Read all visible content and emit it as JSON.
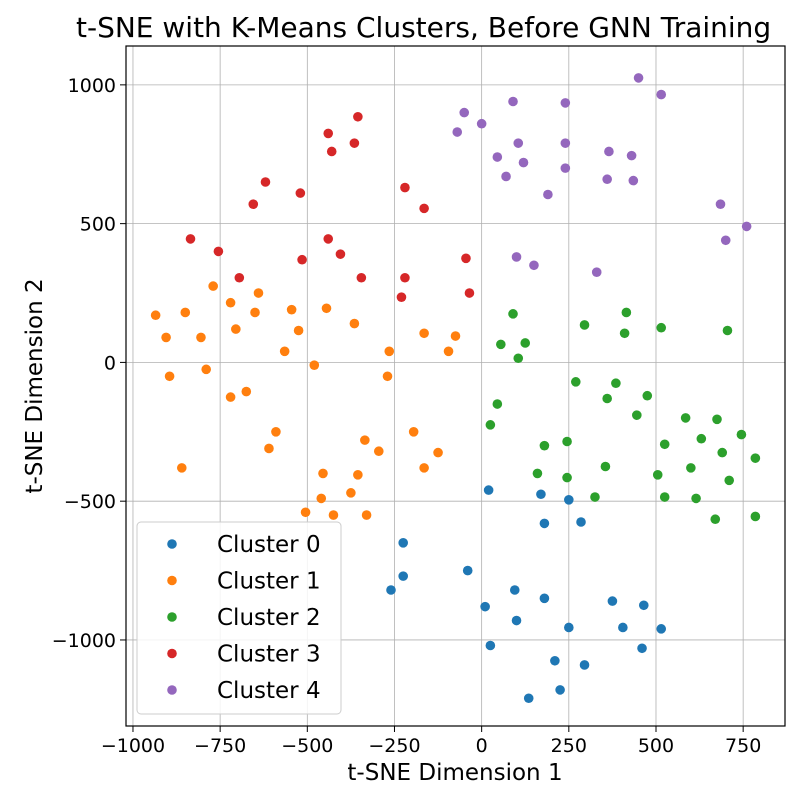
{
  "chart_data": {
    "type": "scatter",
    "title": "t-SNE with K-Means Clusters, Before GNN Training",
    "xlabel": "t-SNE Dimension 1",
    "ylabel": "t-SNE Dimension 2",
    "xlim": [
      -1020,
      870
    ],
    "ylim": [
      -1310,
      1140
    ],
    "xticks": [
      -1000,
      -750,
      -500,
      -250,
      0,
      250,
      500,
      750
    ],
    "xtick_labels": [
      "−1000",
      "−750",
      "−500",
      "−250",
      "0",
      "250",
      "500",
      "750"
    ],
    "yticks": [
      -1000,
      -500,
      0,
      500,
      1000
    ],
    "ytick_labels": [
      "−1000",
      "−500",
      "0",
      "500",
      "1000"
    ],
    "grid": true,
    "legend_position": "lower-left",
    "series": [
      {
        "name": "Cluster 0",
        "color": "#1f77b4",
        "points": [
          [
            20,
            -460
          ],
          [
            170,
            -475
          ],
          [
            180,
            -580
          ],
          [
            250,
            -495
          ],
          [
            285,
            -575
          ],
          [
            -225,
            -650
          ],
          [
            -225,
            -770
          ],
          [
            -260,
            -820
          ],
          [
            -40,
            -750
          ],
          [
            10,
            -880
          ],
          [
            95,
            -820
          ],
          [
            100,
            -930
          ],
          [
            25,
            -1020
          ],
          [
            180,
            -850
          ],
          [
            250,
            -955
          ],
          [
            295,
            -1090
          ],
          [
            210,
            -1075
          ],
          [
            225,
            -1180
          ],
          [
            135,
            -1210
          ],
          [
            375,
            -860
          ],
          [
            405,
            -955
          ],
          [
            465,
            -875
          ],
          [
            515,
            -960
          ],
          [
            460,
            -1030
          ]
        ]
      },
      {
        "name": "Cluster 1",
        "color": "#ff7f0e",
        "points": [
          [
            -935,
            170
          ],
          [
            -850,
            180
          ],
          [
            -770,
            275
          ],
          [
            -720,
            215
          ],
          [
            -640,
            250
          ],
          [
            -545,
            190
          ],
          [
            -905,
            90
          ],
          [
            -895,
            -50
          ],
          [
            -805,
            90
          ],
          [
            -790,
            -25
          ],
          [
            -705,
            120
          ],
          [
            -650,
            180
          ],
          [
            -565,
            40
          ],
          [
            -525,
            115
          ],
          [
            -445,
            195
          ],
          [
            -480,
            -10
          ],
          [
            -365,
            140
          ],
          [
            -265,
            40
          ],
          [
            -165,
            105
          ],
          [
            -75,
            95
          ],
          [
            -95,
            40
          ],
          [
            -270,
            -50
          ],
          [
            -720,
            -125
          ],
          [
            -675,
            -105
          ],
          [
            -610,
            -310
          ],
          [
            -590,
            -250
          ],
          [
            -860,
            -380
          ],
          [
            -455,
            -400
          ],
          [
            -505,
            -540
          ],
          [
            -460,
            -490
          ],
          [
            -425,
            -550
          ],
          [
            -375,
            -470
          ],
          [
            -355,
            -405
          ],
          [
            -335,
            -280
          ],
          [
            -330,
            -550
          ],
          [
            -295,
            -320
          ],
          [
            -195,
            -250
          ],
          [
            -165,
            -380
          ],
          [
            -125,
            -325
          ]
        ]
      },
      {
        "name": "Cluster 2",
        "color": "#2ca02c",
        "points": [
          [
            90,
            175
          ],
          [
            55,
            65
          ],
          [
            125,
            70
          ],
          [
            105,
            15
          ],
          [
            295,
            135
          ],
          [
            415,
            180
          ],
          [
            410,
            105
          ],
          [
            515,
            125
          ],
          [
            705,
            115
          ],
          [
            270,
            -70
          ],
          [
            385,
            -75
          ],
          [
            360,
            -130
          ],
          [
            475,
            -120
          ],
          [
            445,
            -190
          ],
          [
            45,
            -150
          ],
          [
            25,
            -225
          ],
          [
            180,
            -300
          ],
          [
            245,
            -285
          ],
          [
            160,
            -400
          ],
          [
            245,
            -415
          ],
          [
            325,
            -485
          ],
          [
            355,
            -375
          ],
          [
            505,
            -405
          ],
          [
            525,
            -295
          ],
          [
            525,
            -485
          ],
          [
            585,
            -200
          ],
          [
            630,
            -275
          ],
          [
            600,
            -380
          ],
          [
            615,
            -490
          ],
          [
            675,
            -205
          ],
          [
            690,
            -325
          ],
          [
            710,
            -425
          ],
          [
            670,
            -565
          ],
          [
            745,
            -260
          ],
          [
            785,
            -345
          ],
          [
            785,
            -555
          ]
        ]
      },
      {
        "name": "Cluster 3",
        "color": "#d62728",
        "points": [
          [
            -355,
            885
          ],
          [
            -440,
            825
          ],
          [
            -430,
            760
          ],
          [
            -365,
            790
          ],
          [
            -620,
            650
          ],
          [
            -520,
            610
          ],
          [
            -655,
            570
          ],
          [
            -220,
            630
          ],
          [
            -165,
            555
          ],
          [
            -835,
            445
          ],
          [
            -755,
            400
          ],
          [
            -695,
            305
          ],
          [
            -515,
            370
          ],
          [
            -440,
            445
          ],
          [
            -405,
            390
          ],
          [
            -345,
            305
          ],
          [
            -220,
            305
          ],
          [
            -230,
            235
          ],
          [
            -45,
            375
          ],
          [
            -35,
            250
          ]
        ]
      },
      {
        "name": "Cluster 4",
        "color": "#9467bd",
        "points": [
          [
            450,
            1025
          ],
          [
            515,
            965
          ],
          [
            -50,
            900
          ],
          [
            90,
            940
          ],
          [
            240,
            935
          ],
          [
            -70,
            830
          ],
          [
            0,
            860
          ],
          [
            105,
            790
          ],
          [
            240,
            790
          ],
          [
            45,
            740
          ],
          [
            120,
            720
          ],
          [
            70,
            670
          ],
          [
            240,
            700
          ],
          [
            190,
            605
          ],
          [
            365,
            760
          ],
          [
            430,
            745
          ],
          [
            360,
            660
          ],
          [
            435,
            655
          ],
          [
            685,
            570
          ],
          [
            760,
            490
          ],
          [
            700,
            440
          ],
          [
            100,
            380
          ],
          [
            150,
            350
          ],
          [
            330,
            325
          ]
        ]
      }
    ]
  }
}
